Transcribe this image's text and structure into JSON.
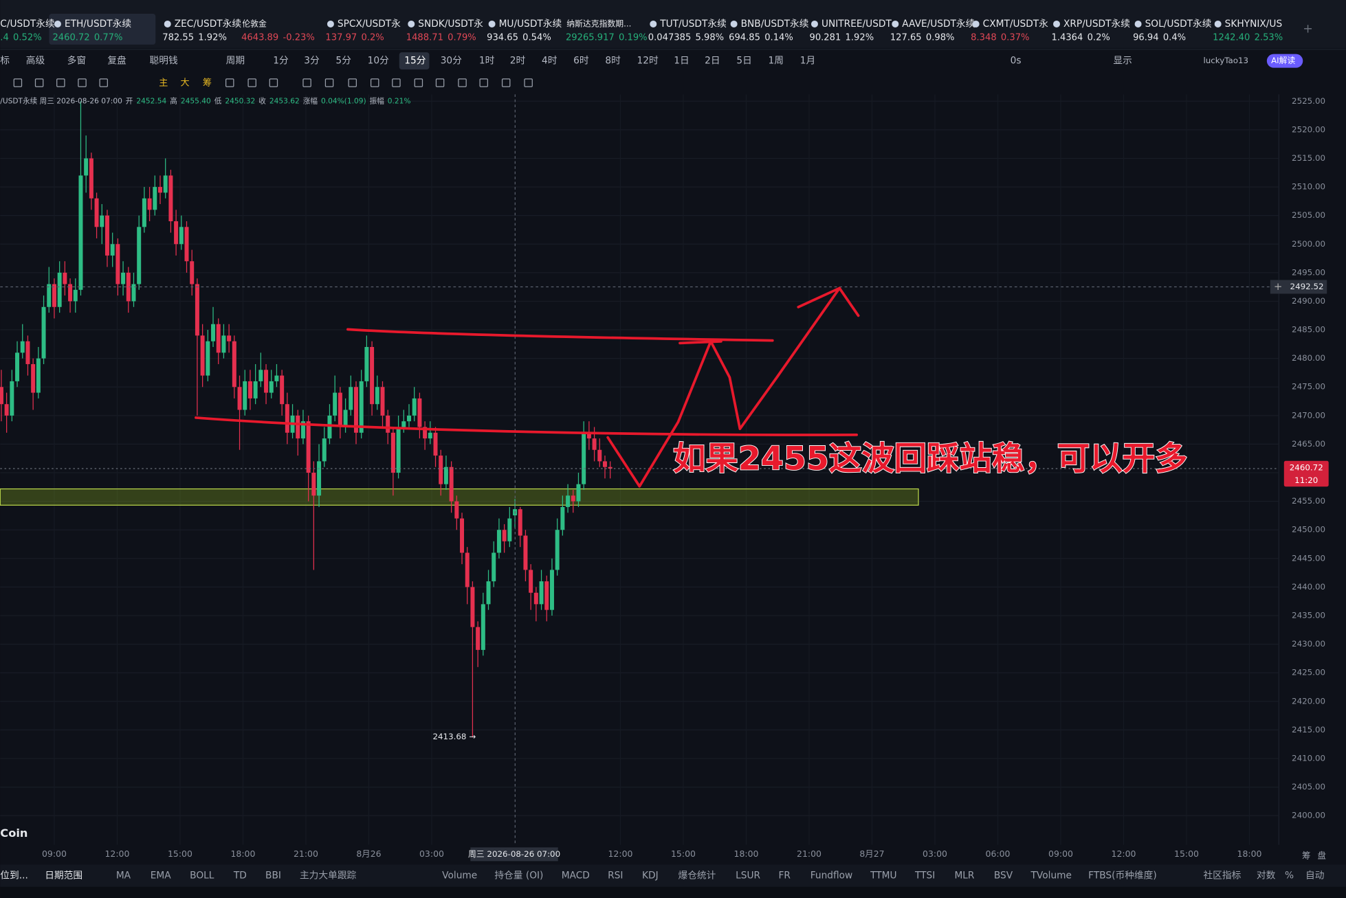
{
  "tickers": [
    {
      "name": "C/USDT永续",
      "price": ".4",
      "change": "0.52%",
      "color": "#26b07a"
    },
    {
      "name": "ETH/USDT永续",
      "price": "2460.72",
      "change": "0.77%",
      "color": "#26b07a"
    },
    {
      "name": "ZEC/USDT永续",
      "price": "782.55",
      "change": "1.92%",
      "color": "#e6e8ec"
    },
    {
      "name": "伦敦金",
      "price": "4643.89",
      "change": "-0.23%",
      "color": "#e04856"
    },
    {
      "name": "SPCX/USDT永",
      "price": "137.97",
      "change": "0.2%",
      "color": "#e04856"
    },
    {
      "name": "SNDK/USDT永",
      "price": "1488.71",
      "change": "0.79%",
      "color": "#e04856"
    },
    {
      "name": "MU/USDT永续",
      "price": "934.65",
      "change": "0.54%",
      "color": "#e6e8ec"
    },
    {
      "name": "纳斯达克指数期...",
      "price": "29265.917",
      "change": "0.19%",
      "color": "#26b07a"
    },
    {
      "name": "TUT/USDT永续",
      "price": "0.047385",
      "change": "5.98%",
      "color": "#e6e8ec"
    },
    {
      "name": "BNB/USDT永续",
      "price": "694.85",
      "change": "0.14%",
      "color": "#e6e8ec"
    },
    {
      "name": "UNITREE/USDT",
      "price": "90.281",
      "change": "1.92%",
      "color": "#e6e8ec"
    },
    {
      "name": "AAVE/USDT永续",
      "price": "127.65",
      "change": "0.98%",
      "color": "#e6e8ec"
    },
    {
      "name": "CXMT/USDT永",
      "price": "8.348",
      "change": "0.37%",
      "color": "#e04856"
    },
    {
      "name": "XRP/USDT永续",
      "price": "1.4364",
      "change": "0.2%",
      "color": "#e6e8ec"
    },
    {
      "name": "SOL/USDT永续",
      "price": "96.94",
      "change": "0.4%",
      "color": "#e6e8ec"
    },
    {
      "name": "SKHYNIX/US",
      "price": "1242.40",
      "change": "2.53%",
      "color": "#26b07a"
    }
  ],
  "toolbar": [
    "标",
    "高级",
    "多窗",
    "复盘",
    "聪明钱",
    "周期",
    "1分",
    "3分",
    "5分",
    "10分",
    "15分",
    "30分",
    "1时",
    "2时",
    "4时",
    "6时",
    "8时",
    "12时",
    "1日",
    "2日",
    "5日",
    "1周",
    "1月"
  ],
  "toolbar_right": [
    "0s",
    "显示",
    "luckyTao13",
    "AI解读"
  ],
  "drawing_tools": [
    "主",
    "大",
    "筹"
  ],
  "ohlc_info": [
    "/USDT永续  周三  2026-08-26 07:00",
    "开",
    "2452.54",
    "高",
    "2455.40",
    "低",
    "2450.32",
    "收",
    "2453.62",
    "涨幅",
    "0.04%(1.09)",
    "振幅",
    "0.21%"
  ],
  "chart_data": {
    "type": "candlestick",
    "up_color": "#2ebd85",
    "down_color": "#e5304f",
    "grid": true,
    "ylim": [
      2395,
      2527
    ],
    "yticks": [
      {
        "value": 2400,
        "label": "2400.00"
      },
      {
        "value": 2405,
        "label": "2405.00"
      },
      {
        "value": 2410,
        "label": "2410.00"
      },
      {
        "value": 2415,
        "label": "2415.00"
      },
      {
        "value": 2420,
        "label": "2420.00"
      },
      {
        "value": 2425,
        "label": "2425.00"
      },
      {
        "value": 2430,
        "label": "2430.00"
      },
      {
        "value": 2435,
        "label": "2435.00"
      },
      {
        "value": 2440,
        "label": "2440.00"
      },
      {
        "value": 2445,
        "label": "2445.00"
      },
      {
        "value": 2450,
        "label": "2450.00"
      },
      {
        "value": 2455,
        "label": "2455.00"
      },
      {
        "value": 2460,
        "label": "2460.00"
      },
      {
        "value": 2465,
        "label": "2465.00"
      },
      {
        "value": 2470,
        "label": "2470.00"
      },
      {
        "value": 2475,
        "label": "2475.00"
      },
      {
        "value": 2480,
        "label": "2480.00"
      },
      {
        "value": 2485,
        "label": "2485.00"
      },
      {
        "value": 2490,
        "label": "2490.00"
      },
      {
        "value": 2495,
        "label": "2495.00"
      },
      {
        "value": 2500,
        "label": "2500.00"
      },
      {
        "value": 2505,
        "label": "2505.00"
      },
      {
        "value": 2510,
        "label": "2510.00"
      },
      {
        "value": 2515,
        "label": "2515.00"
      },
      {
        "value": 2520,
        "label": "2520.00"
      },
      {
        "value": 2525,
        "label": "2525.00"
      }
    ],
    "x_labels": [
      "09:00",
      "12:00",
      "15:00",
      "18:00",
      "21:00",
      "8月26",
      "03:00",
      "12:00",
      "15:00",
      "18:00",
      "21:00",
      "8月27",
      "03:00",
      "06:00",
      "09:00",
      "12:00",
      "15:00",
      "18:00"
    ],
    "crosshair_time": "周三 2026-08-26 07:00",
    "crosshair_price": 2492.52,
    "last_price": 2460.72,
    "countdown": "11:20",
    "low_marker": "2413.68 →",
    "annotation": "如果2455这波回踩站稳，可以开多",
    "watermark": "Coin",
    "candles": [
      [
        2475,
        2478,
        2469,
        2472
      ],
      [
        2472,
        2474,
        2467,
        2470
      ],
      [
        2470,
        2478,
        2469,
        2476
      ],
      [
        2476,
        2483,
        2475,
        2481
      ],
      [
        2481,
        2486,
        2480,
        2483
      ],
      [
        2483,
        2484,
        2477,
        2479
      ],
      [
        2479,
        2480,
        2471,
        2474
      ],
      [
        2474,
        2482,
        2473,
        2480
      ],
      [
        2480,
        2491,
        2479,
        2489
      ],
      [
        2489,
        2496,
        2488,
        2493
      ],
      [
        2493,
        2494,
        2487,
        2489
      ],
      [
        2489,
        2497,
        2488,
        2495
      ],
      [
        2495,
        2497,
        2491,
        2493
      ],
      [
        2493,
        2494,
        2488,
        2490
      ],
      [
        2490,
        2494,
        2488,
        2492
      ],
      [
        2492,
        2525,
        2491,
        2512
      ],
      [
        2512,
        2519,
        2509,
        2515
      ],
      [
        2515,
        2516,
        2506,
        2508
      ],
      [
        2508,
        2509,
        2501,
        2503
      ],
      [
        2503,
        2507,
        2500,
        2505
      ],
      [
        2505,
        2506,
        2496,
        2498
      ],
      [
        2498,
        2502,
        2496,
        2500
      ],
      [
        2500,
        2501,
        2491,
        2493
      ],
      [
        2493,
        2497,
        2491,
        2495
      ],
      [
        2495,
        2496,
        2488,
        2490
      ],
      [
        2490,
        2495,
        2489,
        2493
      ],
      [
        2493,
        2505,
        2492,
        2503
      ],
      [
        2503,
        2510,
        2502,
        2508
      ],
      [
        2508,
        2510,
        2504,
        2506
      ],
      [
        2506,
        2512,
        2505,
        2510
      ],
      [
        2510,
        2512,
        2507,
        2509
      ],
      [
        2509,
        2515,
        2508,
        2512
      ],
      [
        2512,
        2513,
        2502,
        2504
      ],
      [
        2504,
        2506,
        2498,
        2500
      ],
      [
        2500,
        2505,
        2499,
        2503
      ],
      [
        2503,
        2504,
        2495,
        2497
      ],
      [
        2497,
        2499,
        2491,
        2493
      ],
      [
        2493,
        2494,
        2470,
        2484
      ],
      [
        2484,
        2486,
        2475,
        2477
      ],
      [
        2477,
        2485,
        2476,
        2483
      ],
      [
        2483,
        2489,
        2482,
        2486
      ],
      [
        2486,
        2487,
        2479,
        2481
      ],
      [
        2481,
        2486,
        2480,
        2484
      ],
      [
        2484,
        2486,
        2481,
        2483
      ],
      [
        2483,
        2484,
        2473,
        2475
      ],
      [
        2475,
        2477,
        2464,
        2471
      ],
      [
        2471,
        2478,
        2470,
        2476
      ],
      [
        2476,
        2478,
        2471,
        2473
      ],
      [
        2473,
        2479,
        2472,
        2476
      ],
      [
        2476,
        2481,
        2475,
        2478
      ],
      [
        2478,
        2479,
        2472,
        2474
      ],
      [
        2474,
        2478,
        2473,
        2476
      ],
      [
        2476,
        2479,
        2475,
        2477
      ],
      [
        2477,
        2478,
        2470,
        2472
      ],
      [
        2472,
        2474,
        2465,
        2467
      ],
      [
        2467,
        2472,
        2466,
        2470
      ],
      [
        2470,
        2471,
        2463,
        2466
      ],
      [
        2466,
        2471,
        2465,
        2469
      ],
      [
        2469,
        2470,
        2455,
        2460
      ],
      [
        2460,
        2462,
        2443,
        2456
      ],
      [
        2456,
        2465,
        2454,
        2462
      ],
      [
        2462,
        2468,
        2461,
        2466
      ],
      [
        2466,
        2472,
        2465,
        2470
      ],
      [
        2470,
        2477,
        2469,
        2474
      ],
      [
        2474,
        2475,
        2466,
        2468
      ],
      [
        2468,
        2473,
        2467,
        2471
      ],
      [
        2471,
        2477,
        2470,
        2475
      ],
      [
        2475,
        2476,
        2465,
        2467
      ],
      [
        2467,
        2478,
        2466,
        2476
      ],
      [
        2476,
        2484,
        2475,
        2482
      ],
      [
        2482,
        2483,
        2470,
        2472
      ],
      [
        2472,
        2477,
        2471,
        2475
      ],
      [
        2475,
        2476,
        2468,
        2470
      ],
      [
        2470,
        2471,
        2465,
        2467
      ],
      [
        2467,
        2468,
        2456,
        2460
      ],
      [
        2460,
        2470,
        2459,
        2468
      ],
      [
        2468,
        2471,
        2467,
        2469
      ],
      [
        2469,
        2472,
        2468,
        2470
      ],
      [
        2470,
        2475,
        2469,
        2473
      ],
      [
        2473,
        2474,
        2466,
        2468
      ],
      [
        2468,
        2469,
        2464,
        2466
      ],
      [
        2466,
        2469,
        2465,
        2467
      ],
      [
        2467,
        2468,
        2461,
        2463
      ],
      [
        2463,
        2464,
        2456,
        2458
      ],
      [
        2458,
        2463,
        2457,
        2461
      ],
      [
        2461,
        2462,
        2453,
        2455
      ],
      [
        2455,
        2456,
        2450,
        2452
      ],
      [
        2452,
        2453,
        2444,
        2446
      ],
      [
        2446,
        2447,
        2437,
        2440
      ],
      [
        2440,
        2441,
        2413.68,
        2433
      ],
      [
        2433,
        2434,
        2426,
        2429
      ],
      [
        2429,
        2439,
        2428,
        2437
      ],
      [
        2437,
        2443,
        2436,
        2441
      ],
      [
        2441,
        2448,
        2440,
        2446
      ],
      [
        2446,
        2452,
        2445,
        2450
      ],
      [
        2450,
        2451,
        2446,
        2448
      ],
      [
        2448,
        2454,
        2447,
        2452
      ],
      [
        2452.54,
        2455.4,
        2450.32,
        2453.62
      ],
      [
        2453.62,
        2454,
        2447,
        2449
      ],
      [
        2449,
        2450,
        2441,
        2443
      ],
      [
        2443,
        2444,
        2436,
        2439
      ],
      [
        2439,
        2440,
        2434,
        2437
      ],
      [
        2437,
        2443,
        2436,
        2441
      ],
      [
        2441,
        2442,
        2434,
        2436
      ],
      [
        2436,
        2445,
        2435,
        2443
      ],
      [
        2443,
        2452,
        2442,
        2450
      ],
      [
        2450,
        2456,
        2449,
        2454
      ],
      [
        2454,
        2458,
        2453,
        2456
      ],
      [
        2456,
        2457,
        2453,
        2455
      ],
      [
        2455,
        2460,
        2454,
        2458
      ],
      [
        2458,
        2469,
        2457,
        2467
      ],
      [
        2467,
        2469,
        2464,
        2466
      ],
      [
        2466,
        2468,
        2462,
        2464
      ],
      [
        2464,
        2466,
        2461,
        2462
      ],
      [
        2462,
        2463,
        2459,
        2461
      ],
      [
        2461,
        2462,
        2459,
        2460.72
      ]
    ]
  },
  "bottom_tabs": [
    "位到...",
    "日期范围",
    "MA",
    "EMA",
    "BOLL",
    "TD",
    "BBI",
    "主力大单跟踪",
    "Volume",
    "持仓量 (OI)",
    "MACD",
    "RSI",
    "KDJ",
    "爆仓统计",
    "LSUR",
    "FR",
    "Fundflow",
    "TTMU",
    "TTSI",
    "MLR",
    "BSV",
    "TVolume",
    "FTBS(币种维度)",
    "社区指标",
    "对数",
    "%",
    "自动"
  ],
  "axis_side": [
    "筹",
    "盘"
  ]
}
